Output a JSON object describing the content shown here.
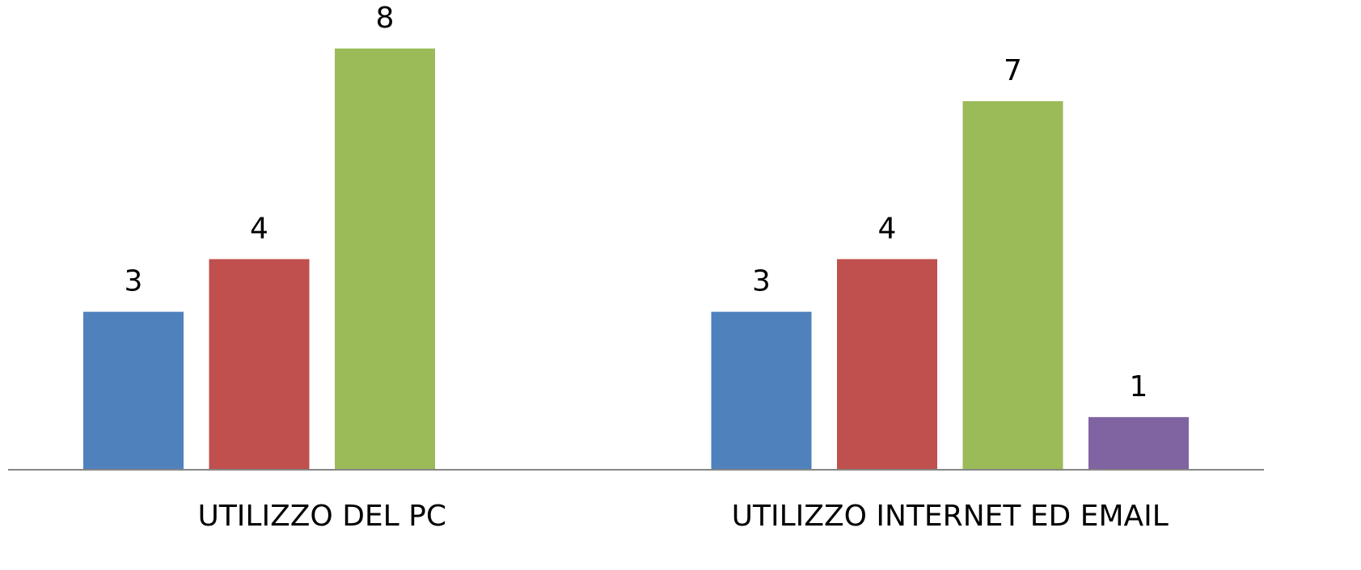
{
  "chart_data": {
    "type": "bar",
    "categories": [
      "UTILIZZO DEL PC",
      "UTILIZZO INTERNET ED EMAIL"
    ],
    "series": [
      {
        "color": "#4f81bd",
        "values": [
          3,
          3
        ]
      },
      {
        "color": "#c0504d",
        "values": [
          4,
          4
        ]
      },
      {
        "color": "#9bbb59",
        "values": [
          8,
          7
        ]
      },
      {
        "color": "#8064a2",
        "values": [
          null,
          1
        ]
      }
    ],
    "ylim": [
      0,
      8
    ],
    "grid": false
  }
}
